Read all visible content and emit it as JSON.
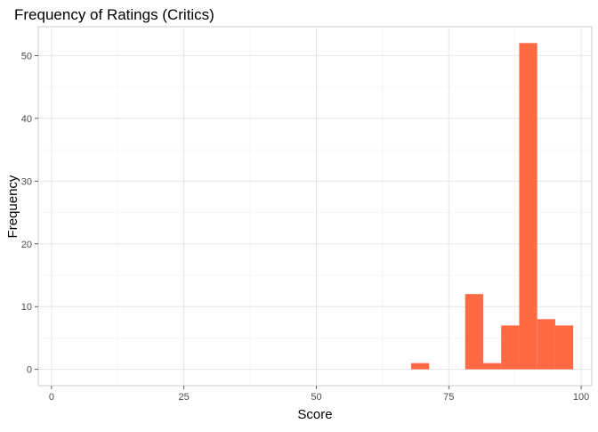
{
  "chart_data": {
    "type": "bar",
    "title": "Frequency of Ratings (Critics)",
    "xlabel": "Score",
    "ylabel": "Frequency",
    "xlim": [
      -2.5,
      102
    ],
    "ylim": [
      -2.6,
      54.6
    ],
    "x_ticks": [
      0,
      25,
      50,
      75,
      100
    ],
    "y_ticks": [
      0,
      10,
      20,
      30,
      40,
      50
    ],
    "bin_width": 3.4,
    "bars": [
      {
        "x": 69.6,
        "count": 1
      },
      {
        "x": 79.8,
        "count": 12
      },
      {
        "x": 83.2,
        "count": 1
      },
      {
        "x": 86.6,
        "count": 7
      },
      {
        "x": 90.0,
        "count": 52
      },
      {
        "x": 93.4,
        "count": 8
      },
      {
        "x": 96.8,
        "count": 7
      }
    ],
    "bar_color": "#FF6A44",
    "grid": true
  }
}
